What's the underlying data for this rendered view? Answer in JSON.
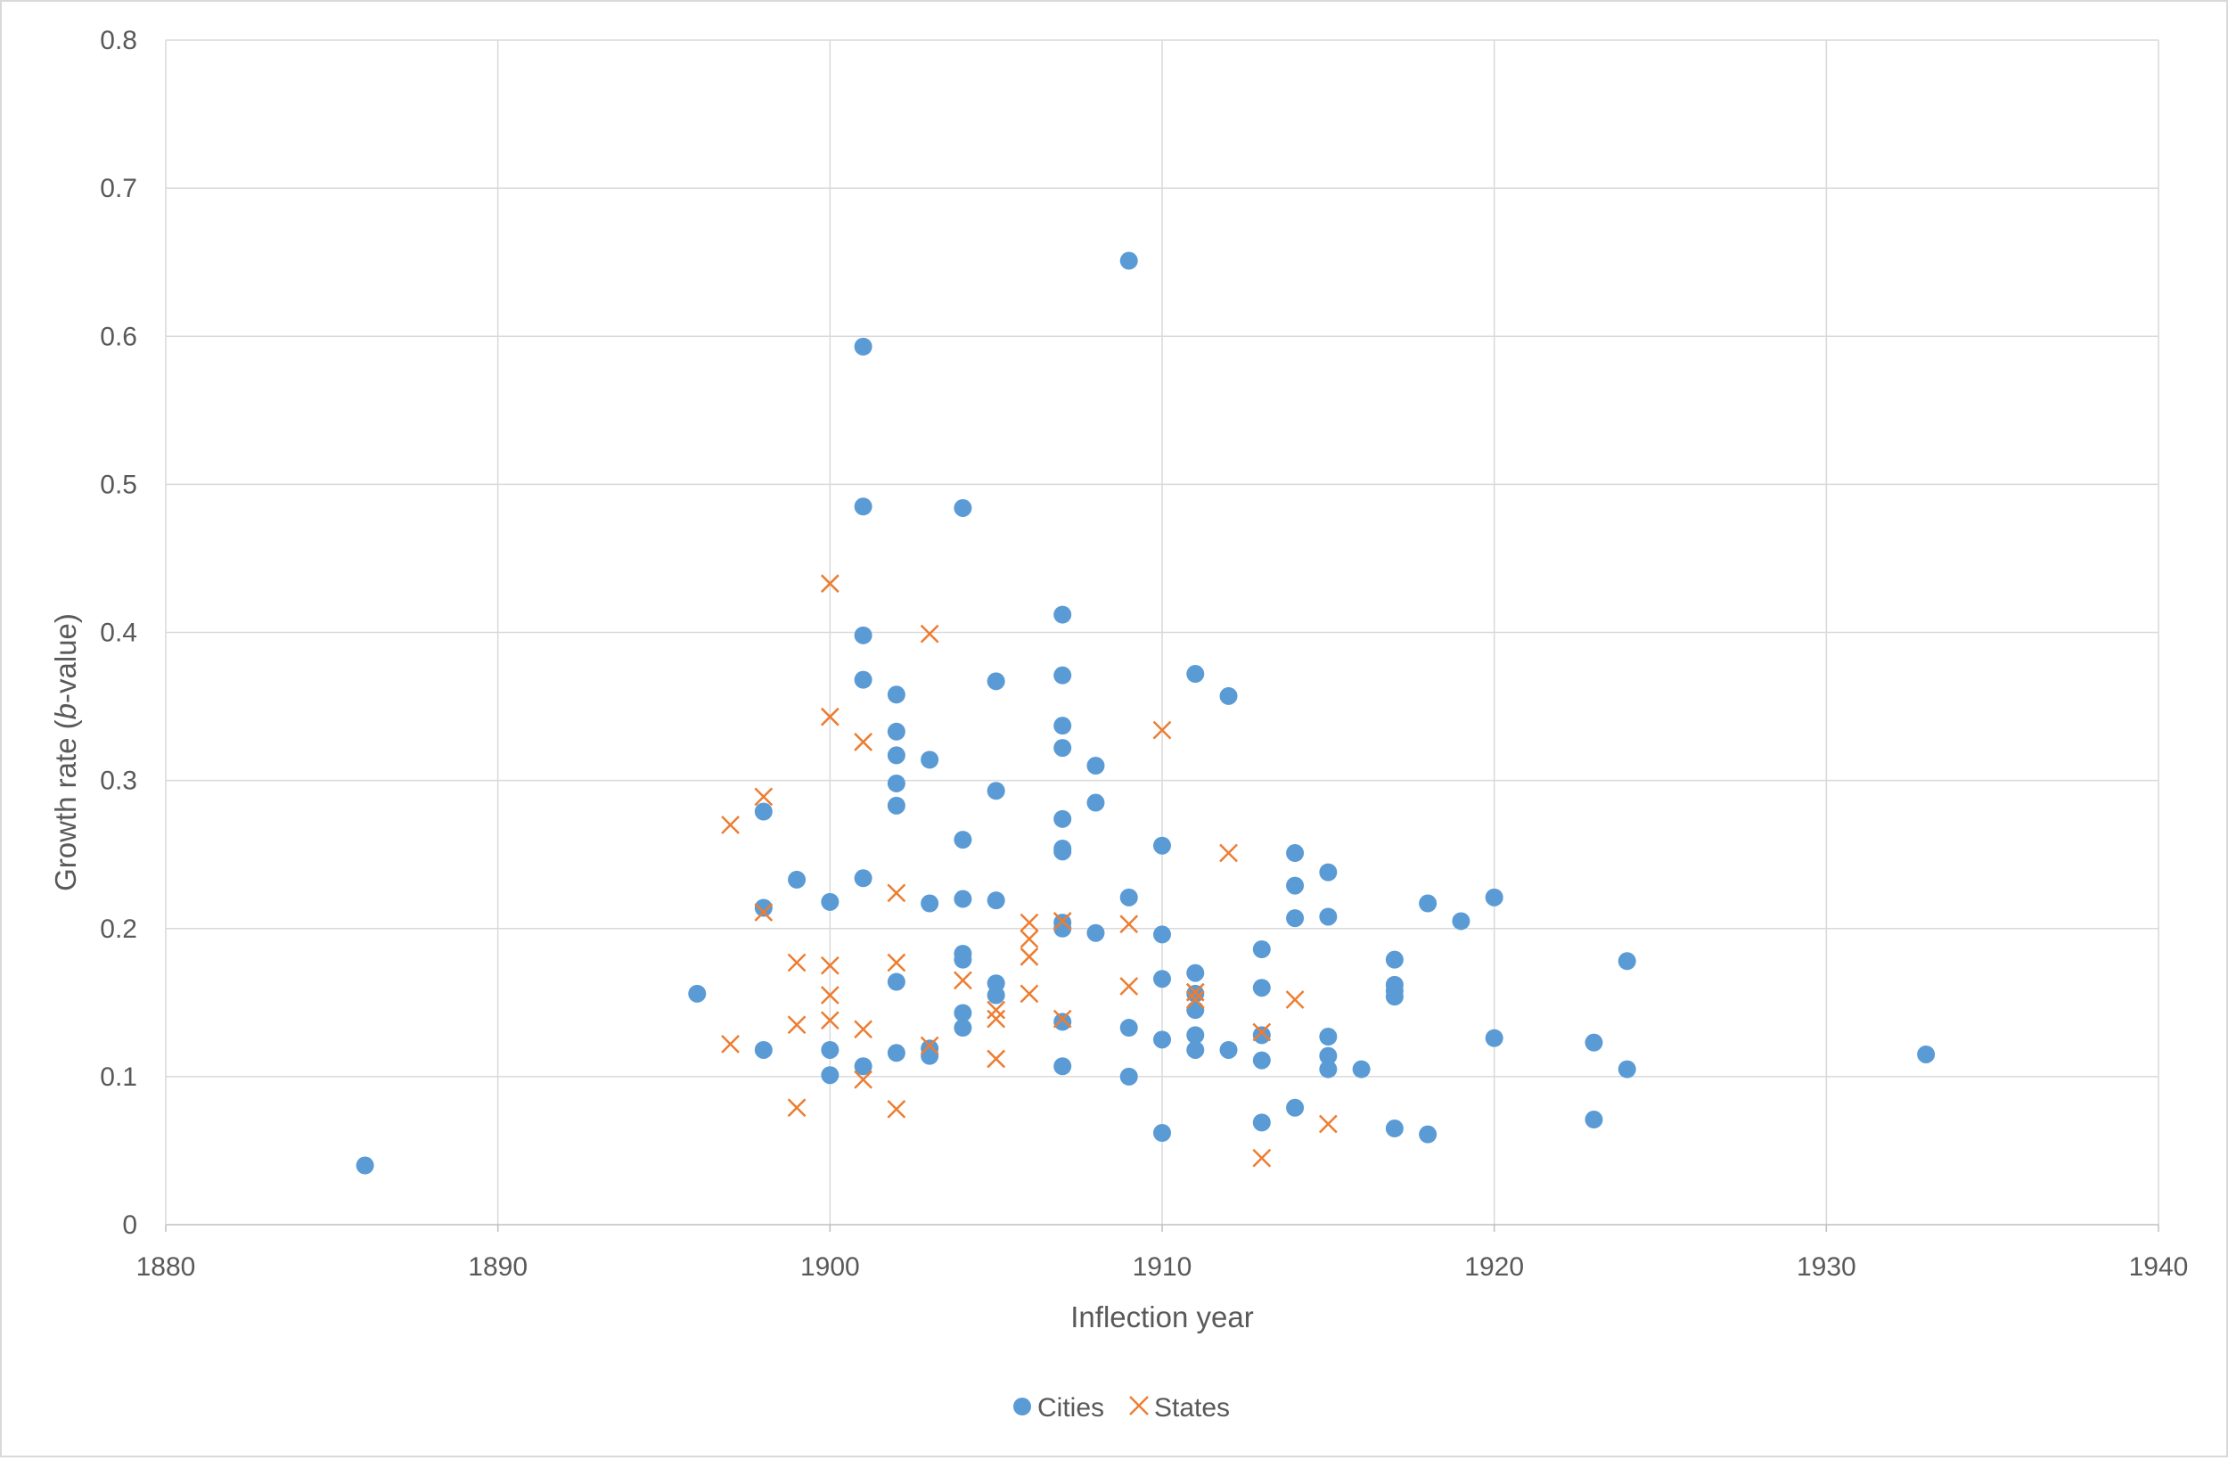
{
  "chart_data": {
    "type": "scatter",
    "title": "",
    "xlabel": "Inflection year",
    "ylabel_parts": [
      "Growth rate (",
      "b",
      "-value)"
    ],
    "xlim": [
      1880,
      1940
    ],
    "ylim": [
      0,
      0.8
    ],
    "x_ticks": [
      1880,
      1890,
      1900,
      1910,
      1920,
      1930,
      1940
    ],
    "y_ticks": [
      0,
      0.1,
      0.2,
      0.3,
      0.4,
      0.5,
      0.6,
      0.7,
      0.8
    ],
    "x_tick_labels": [
      "1880",
      "1890",
      "1900",
      "1910",
      "1920",
      "1930",
      "1940"
    ],
    "y_tick_labels": [
      "0",
      "0.1",
      "0.2",
      "0.3",
      "0.4",
      "0.5",
      "0.6",
      "0.7",
      "0.8"
    ],
    "grid": true,
    "legend_position": "bottom",
    "series": [
      {
        "name": "Cities",
        "marker": "circle",
        "color": "#5b9bd5",
        "points": [
          [
            1886,
            0.04
          ],
          [
            1896,
            0.156
          ],
          [
            1898,
            0.279
          ],
          [
            1898,
            0.214
          ],
          [
            1898,
            0.118
          ],
          [
            1899,
            0.233
          ],
          [
            1900,
            0.218
          ],
          [
            1900,
            0.118
          ],
          [
            1900,
            0.101
          ],
          [
            1901,
            0.593
          ],
          [
            1901,
            0.485
          ],
          [
            1901,
            0.398
          ],
          [
            1901,
            0.368
          ],
          [
            1901,
            0.234
          ],
          [
            1901,
            0.107
          ],
          [
            1902,
            0.358
          ],
          [
            1902,
            0.333
          ],
          [
            1902,
            0.317
          ],
          [
            1902,
            0.298
          ],
          [
            1902,
            0.283
          ],
          [
            1902,
            0.164
          ],
          [
            1902,
            0.116
          ],
          [
            1903,
            0.314
          ],
          [
            1903,
            0.217
          ],
          [
            1903,
            0.119
          ],
          [
            1903,
            0.114
          ],
          [
            1904,
            0.484
          ],
          [
            1904,
            0.26
          ],
          [
            1904,
            0.22
          ],
          [
            1904,
            0.183
          ],
          [
            1904,
            0.179
          ],
          [
            1904,
            0.143
          ],
          [
            1904,
            0.133
          ],
          [
            1905,
            0.367
          ],
          [
            1905,
            0.293
          ],
          [
            1905,
            0.219
          ],
          [
            1905,
            0.163
          ],
          [
            1905,
            0.155
          ],
          [
            1907,
            0.412
          ],
          [
            1907,
            0.371
          ],
          [
            1907,
            0.337
          ],
          [
            1907,
            0.322
          ],
          [
            1907,
            0.274
          ],
          [
            1907,
            0.254
          ],
          [
            1907,
            0.252
          ],
          [
            1907,
            0.204
          ],
          [
            1907,
            0.2
          ],
          [
            1907,
            0.137
          ],
          [
            1907,
            0.107
          ],
          [
            1908,
            0.31
          ],
          [
            1908,
            0.285
          ],
          [
            1908,
            0.197
          ],
          [
            1909,
            0.651
          ],
          [
            1909,
            0.221
          ],
          [
            1909,
            0.133
          ],
          [
            1909,
            0.1
          ],
          [
            1910,
            0.256
          ],
          [
            1910,
            0.196
          ],
          [
            1910,
            0.166
          ],
          [
            1910,
            0.125
          ],
          [
            1910,
            0.062
          ],
          [
            1911,
            0.372
          ],
          [
            1911,
            0.17
          ],
          [
            1911,
            0.156
          ],
          [
            1911,
            0.145
          ],
          [
            1911,
            0.128
          ],
          [
            1911,
            0.118
          ],
          [
            1912,
            0.357
          ],
          [
            1912,
            0.118
          ],
          [
            1913,
            0.186
          ],
          [
            1913,
            0.16
          ],
          [
            1913,
            0.128
          ],
          [
            1913,
            0.111
          ],
          [
            1913,
            0.069
          ],
          [
            1914,
            0.251
          ],
          [
            1914,
            0.229
          ],
          [
            1914,
            0.207
          ],
          [
            1914,
            0.079
          ],
          [
            1915,
            0.238
          ],
          [
            1915,
            0.208
          ],
          [
            1915,
            0.127
          ],
          [
            1915,
            0.114
          ],
          [
            1915,
            0.105
          ],
          [
            1916,
            0.105
          ],
          [
            1917,
            0.179
          ],
          [
            1917,
            0.162
          ],
          [
            1917,
            0.158
          ],
          [
            1917,
            0.154
          ],
          [
            1917,
            0.065
          ],
          [
            1918,
            0.217
          ],
          [
            1918,
            0.061
          ],
          [
            1919,
            0.205
          ],
          [
            1920,
            0.221
          ],
          [
            1920,
            0.126
          ],
          [
            1923,
            0.123
          ],
          [
            1923,
            0.071
          ],
          [
            1924,
            0.178
          ],
          [
            1924,
            0.105
          ],
          [
            1933,
            0.115
          ]
        ]
      },
      {
        "name": "States",
        "marker": "x",
        "color": "#ed7d31",
        "points": [
          [
            1897,
            0.27
          ],
          [
            1897,
            0.122
          ],
          [
            1898,
            0.289
          ],
          [
            1898,
            0.211
          ],
          [
            1899,
            0.177
          ],
          [
            1899,
            0.135
          ],
          [
            1899,
            0.079
          ],
          [
            1900,
            0.433
          ],
          [
            1900,
            0.343
          ],
          [
            1900,
            0.175
          ],
          [
            1900,
            0.155
          ],
          [
            1900,
            0.138
          ],
          [
            1901,
            0.326
          ],
          [
            1901,
            0.132
          ],
          [
            1901,
            0.098
          ],
          [
            1902,
            0.224
          ],
          [
            1902,
            0.177
          ],
          [
            1902,
            0.078
          ],
          [
            1903,
            0.399
          ],
          [
            1903,
            0.121
          ],
          [
            1904,
            0.165
          ],
          [
            1905,
            0.145
          ],
          [
            1905,
            0.139
          ],
          [
            1905,
            0.112
          ],
          [
            1906,
            0.204
          ],
          [
            1906,
            0.193
          ],
          [
            1906,
            0.181
          ],
          [
            1906,
            0.156
          ],
          [
            1907,
            0.205
          ],
          [
            1907,
            0.139
          ],
          [
            1909,
            0.203
          ],
          [
            1909,
            0.161
          ],
          [
            1910,
            0.334
          ],
          [
            1911,
            0.157
          ],
          [
            1911,
            0.152
          ],
          [
            1912,
            0.251
          ],
          [
            1913,
            0.13
          ],
          [
            1913,
            0.045
          ],
          [
            1914,
            0.152
          ],
          [
            1915,
            0.068
          ]
        ]
      }
    ]
  }
}
